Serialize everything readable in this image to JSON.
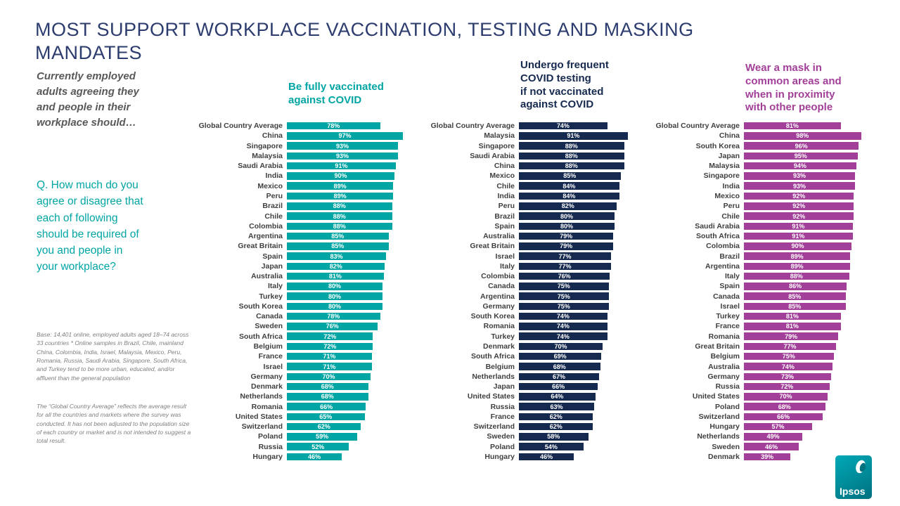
{
  "slide": {
    "title": "MOST SUPPORT WORKPLACE VACCINATION, TESTING AND MASKING\nMANDATES",
    "subtitle": "Currently employed\nadults agreeing they\nand people in their\nworkplace should…",
    "question": "Q. How much do you\nagree or disagree that\neach of following\nshould be required of\nyou and people in\nyour workplace?",
    "notes": {
      "base": "Base: 14,401 online, employed adults aged 18–74 across 33 countries * Online samples in Brazil, Chile, mainland China, Colombia, India, Israel, Malaysia, Mexico, Peru, Romania, Russia, Saudi Arabia, Singapore, South Africa, and Turkey tend to be more urban, educated, and/or affluent than the general population",
      "global": "The “Global Country Average” reflects the average result for all the countries and markets where the survey was conducted. It has not been adjusted to the population size of each country or market and is not intended to suggest a total result."
    }
  },
  "logo": {
    "text": "Ipsos"
  },
  "chart_data": [
    {
      "type": "bar",
      "orientation": "horizontal",
      "key": "vaccinated",
      "title": "Be fully vaccinated\nagainst COVID",
      "color": "#00a5a4",
      "value_suffix": "%",
      "xlim": [
        0,
        100
      ],
      "categories": [
        "Global Country Average",
        "China",
        "Singapore",
        "Malaysia",
        "Saudi Arabia",
        "India",
        "Mexico",
        "Peru",
        "Brazil",
        "Chile",
        "Colombia",
        "Argentina",
        "Great Britain",
        "Spain",
        "Japan",
        "Australia",
        "Italy",
        "Turkey",
        "South Korea",
        "Canada",
        "Sweden",
        "South Africa",
        "Belgium",
        "France",
        "Israel",
        "Germany",
        "Denmark",
        "Netherlands",
        "Romania",
        "United States",
        "Switzerland",
        "Poland",
        "Russia",
        "Hungary"
      ],
      "values": [
        78,
        97,
        93,
        93,
        91,
        90,
        89,
        89,
        88,
        88,
        88,
        85,
        85,
        83,
        82,
        81,
        80,
        80,
        80,
        78,
        76,
        72,
        72,
        71,
        71,
        70,
        68,
        68,
        66,
        65,
        62,
        59,
        52,
        46
      ]
    },
    {
      "type": "bar",
      "orientation": "horizontal",
      "key": "testing",
      "title": "Undergo frequent\nCOVID testing\nif not vaccinated\nagainst COVID",
      "color": "#16294f",
      "value_suffix": "%",
      "xlim": [
        0,
        100
      ],
      "categories": [
        "Global Country Average",
        "Malaysia",
        "Singapore",
        "Saudi Arabia",
        "China",
        "Mexico",
        "Chile",
        "India",
        "Peru",
        "Brazil",
        "Spain",
        "Australia",
        "Great Britain",
        "Israel",
        "Italy",
        "Colombia",
        "Canada",
        "Argentina",
        "Germany",
        "South Korea",
        "Romania",
        "Turkey",
        "Denmark",
        "South Africa",
        "Belgium",
        "Netherlands",
        "Japan",
        "United States",
        "Russia",
        "France",
        "Switzerland",
        "Sweden",
        "Poland",
        "Hungary"
      ],
      "values": [
        74,
        91,
        88,
        88,
        88,
        85,
        84,
        84,
        82,
        80,
        80,
        79,
        79,
        77,
        77,
        76,
        75,
        75,
        75,
        74,
        74,
        74,
        70,
        69,
        68,
        67,
        66,
        64,
        63,
        62,
        62,
        58,
        54,
        46
      ]
    },
    {
      "type": "bar",
      "orientation": "horizontal",
      "key": "mask",
      "title": "Wear a mask in\ncommon areas and\nwhen in proximity\nwith other people",
      "color": "#a23f99",
      "value_suffix": "%",
      "xlim": [
        0,
        100
      ],
      "categories": [
        "Global Country Average",
        "China",
        "South Korea",
        "Japan",
        "Malaysia",
        "Singapore",
        "India",
        "Mexico",
        "Peru",
        "Chile",
        "Saudi Arabia",
        "South Africa",
        "Colombia",
        "Brazil",
        "Argentina",
        "Italy",
        "Spain",
        "Canada",
        "Israel",
        "Turkey",
        "France",
        "Romania",
        "Great Britain",
        "Belgium",
        "Australia",
        "Germany",
        "Russia",
        "United States",
        "Poland",
        "Switzerland",
        "Hungary",
        "Netherlands",
        "Sweden",
        "Denmark"
      ],
      "values": [
        81,
        98,
        96,
        95,
        94,
        93,
        93,
        92,
        92,
        92,
        91,
        91,
        90,
        89,
        89,
        88,
        86,
        85,
        85,
        81,
        81,
        79,
        77,
        75,
        74,
        73,
        72,
        70,
        68,
        66,
        57,
        49,
        46,
        39
      ]
    }
  ]
}
